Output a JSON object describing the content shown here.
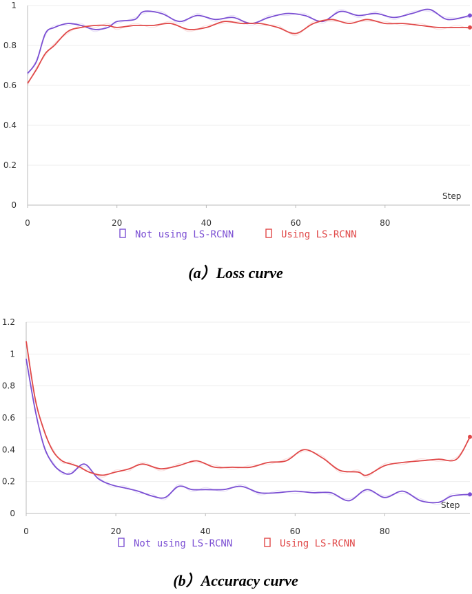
{
  "colors": {
    "not_using": "#7b4fd3",
    "using": "#e04848",
    "axis": "#bbbbbb",
    "grid": "#eeeeee",
    "tick": "#333333"
  },
  "chart_data": [
    {
      "type": "line",
      "title": "",
      "caption": "(a）Loss curve",
      "xlabel": "Step",
      "ylabel": "",
      "xlim": [
        0,
        99
      ],
      "ylim": [
        0,
        1
      ],
      "xticks": [
        "0",
        "20",
        "40",
        "60",
        "80"
      ],
      "yticks": [
        "0",
        "0.2",
        "0.4",
        "0.6",
        "0.8",
        "1"
      ],
      "grid": "horizontal",
      "legend_position": "bottom-center",
      "series": [
        {
          "name": "Not using LS-RCNN",
          "color_key": "not_using",
          "x": [
            0,
            2,
            4,
            6,
            9,
            12,
            15,
            18,
            20,
            24,
            26,
            30,
            34,
            38,
            42,
            46,
            50,
            54,
            58,
            62,
            66,
            70,
            74,
            78,
            82,
            86,
            90,
            94,
            99
          ],
          "y": [
            0.66,
            0.72,
            0.86,
            0.89,
            0.91,
            0.9,
            0.88,
            0.89,
            0.92,
            0.93,
            0.97,
            0.96,
            0.92,
            0.95,
            0.93,
            0.94,
            0.91,
            0.94,
            0.96,
            0.95,
            0.92,
            0.97,
            0.95,
            0.96,
            0.94,
            0.96,
            0.98,
            0.93,
            0.95
          ]
        },
        {
          "name": "Using LS-RCNN",
          "color_key": "using",
          "x": [
            0,
            2,
            4,
            6,
            9,
            12,
            15,
            18,
            20,
            24,
            28,
            32,
            36,
            40,
            44,
            48,
            52,
            56,
            60,
            64,
            68,
            72,
            76,
            80,
            84,
            88,
            92,
            96,
            99
          ],
          "y": [
            0.61,
            0.68,
            0.76,
            0.8,
            0.87,
            0.89,
            0.9,
            0.9,
            0.89,
            0.9,
            0.9,
            0.91,
            0.88,
            0.89,
            0.92,
            0.91,
            0.91,
            0.89,
            0.86,
            0.91,
            0.93,
            0.91,
            0.93,
            0.91,
            0.91,
            0.9,
            0.89,
            0.89,
            0.89
          ]
        }
      ]
    },
    {
      "type": "line",
      "title": "",
      "caption": "(b）Accuracy curve",
      "xlabel": "Step",
      "ylabel": "",
      "xlim": [
        0,
        99
      ],
      "ylim": [
        0,
        1.2
      ],
      "xticks": [
        "0",
        "20",
        "40",
        "60",
        "80"
      ],
      "yticks": [
        "0",
        "0.2",
        "0.4",
        "0.6",
        "0.8",
        "1",
        "1.2"
      ],
      "grid": "horizontal",
      "legend_position": "bottom-center",
      "series": [
        {
          "name": "Not using LS-RCNN",
          "color_key": "not_using",
          "x": [
            0,
            2,
            4,
            6,
            8,
            10,
            13,
            16,
            19,
            22,
            25,
            28,
            31,
            34,
            37,
            40,
            44,
            48,
            52,
            56,
            60,
            64,
            68,
            72,
            76,
            80,
            84,
            88,
            92,
            95,
            99
          ],
          "y": [
            0.97,
            0.65,
            0.42,
            0.31,
            0.26,
            0.25,
            0.31,
            0.22,
            0.18,
            0.16,
            0.14,
            0.11,
            0.1,
            0.17,
            0.15,
            0.15,
            0.15,
            0.17,
            0.13,
            0.13,
            0.14,
            0.13,
            0.13,
            0.08,
            0.15,
            0.1,
            0.14,
            0.08,
            0.07,
            0.11,
            0.12
          ]
        },
        {
          "name": "Using LS-RCNN",
          "color_key": "using",
          "x": [
            0,
            2,
            4,
            6,
            8,
            10,
            12,
            14,
            17,
            20,
            23,
            26,
            30,
            34,
            38,
            42,
            46,
            50,
            54,
            58,
            62,
            66,
            70,
            74,
            76,
            80,
            84,
            88,
            92,
            96,
            99
          ],
          "y": [
            1.08,
            0.72,
            0.52,
            0.39,
            0.33,
            0.31,
            0.29,
            0.26,
            0.24,
            0.26,
            0.28,
            0.31,
            0.28,
            0.3,
            0.33,
            0.29,
            0.29,
            0.29,
            0.32,
            0.33,
            0.4,
            0.35,
            0.27,
            0.26,
            0.24,
            0.3,
            0.32,
            0.33,
            0.34,
            0.34,
            0.48
          ]
        }
      ]
    }
  ]
}
